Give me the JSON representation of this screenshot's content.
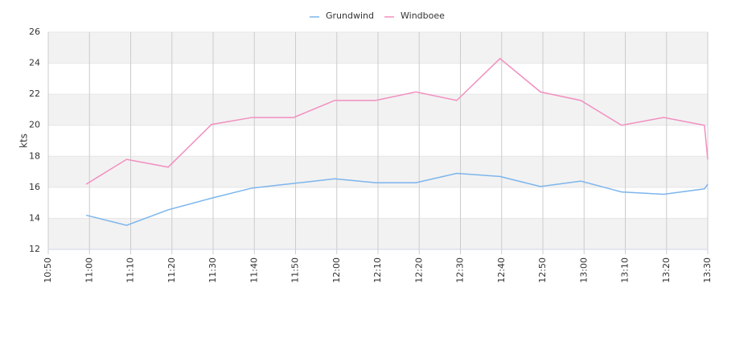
{
  "chart_data": {
    "type": "line",
    "ylabel": "kts",
    "xlim": [
      650,
      810
    ],
    "xticks": [
      {
        "value": 650,
        "label": "10:50"
      },
      {
        "value": 660,
        "label": "11:00"
      },
      {
        "value": 670,
        "label": "11:10"
      },
      {
        "value": 680,
        "label": "11:20"
      },
      {
        "value": 690,
        "label": "11:30"
      },
      {
        "value": 700,
        "label": "11:40"
      },
      {
        "value": 710,
        "label": "11:50"
      },
      {
        "value": 720,
        "label": "12:00"
      },
      {
        "value": 730,
        "label": "12:10"
      },
      {
        "value": 740,
        "label": "12:20"
      },
      {
        "value": 750,
        "label": "12:30"
      },
      {
        "value": 760,
        "label": "12:40"
      },
      {
        "value": 770,
        "label": "12:50"
      },
      {
        "value": 780,
        "label": "13:00"
      },
      {
        "value": 790,
        "label": "13:10"
      },
      {
        "value": 800,
        "label": "13:20"
      },
      {
        "value": 810,
        "label": "13:30"
      }
    ],
    "ylim": [
      12,
      26
    ],
    "yticks": [
      12,
      14,
      16,
      18,
      20,
      22,
      24,
      26
    ],
    "grid": true,
    "legend": "top",
    "x": [
      659.2,
      669.0,
      679.1,
      689.6,
      699.4,
      709.5,
      719.5,
      729.4,
      739.2,
      749.1,
      759.6,
      769.4,
      779.2,
      789.1,
      799.3,
      809.2,
      810
    ],
    "series": [
      {
        "name": "Grundwind",
        "color": "#7cb5ec",
        "values": [
          14.2,
          13.55,
          14.55,
          15.3,
          15.95,
          16.25,
          16.55,
          16.3,
          16.3,
          16.9,
          16.7,
          16.05,
          16.4,
          15.7,
          15.55,
          15.9,
          16.2
        ]
      },
      {
        "name": "Windboee",
        "color": "#f28fc0",
        "values": [
          16.2,
          17.8,
          17.3,
          20.05,
          20.5,
          20.5,
          21.6,
          21.6,
          22.15,
          21.6,
          24.3,
          22.15,
          21.6,
          20.0,
          20.5,
          20.0,
          17.8
        ]
      }
    ]
  }
}
